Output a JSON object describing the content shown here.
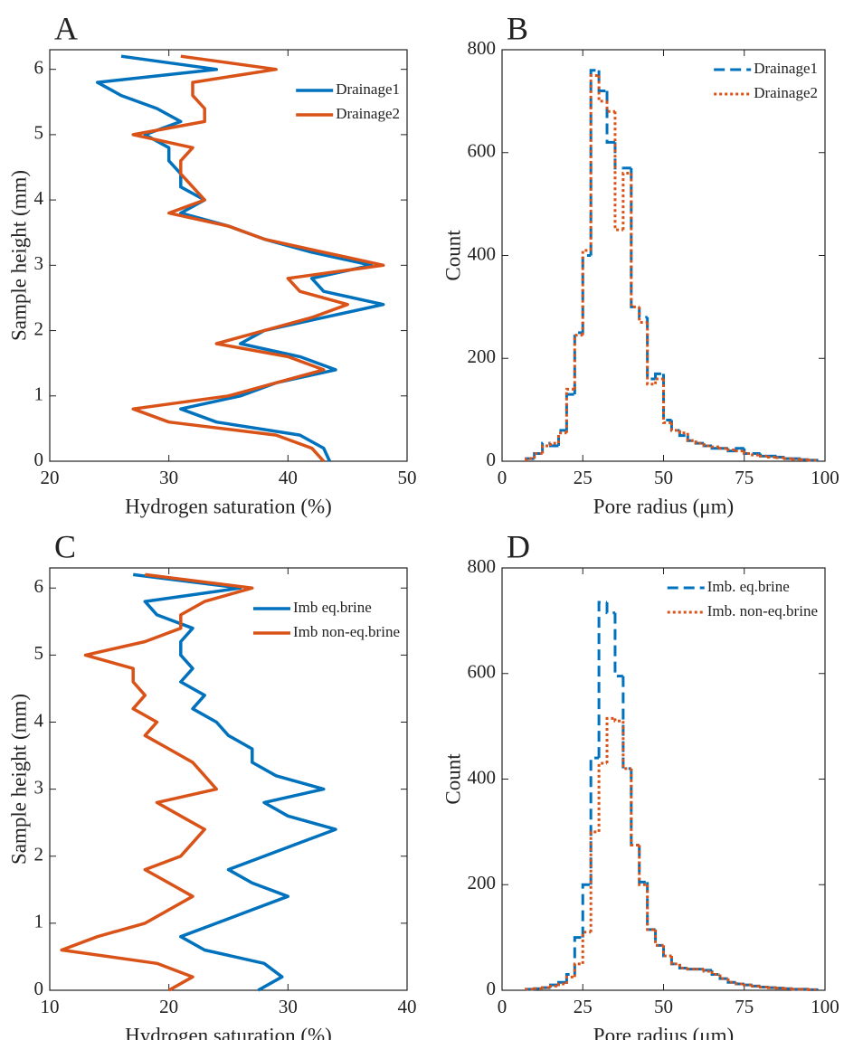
{
  "chart_data": [
    {
      "type": "line",
      "label": "A",
      "xlabel": "Hydrogen saturation (%)",
      "ylabel": "Sample height (mm)",
      "xlim": [
        20,
        50
      ],
      "xticks": [
        20,
        30,
        40,
        50
      ],
      "ylim": [
        0,
        6.3
      ],
      "yticks": [
        0,
        1,
        2,
        3,
        4,
        5,
        6
      ],
      "legend": "upper right",
      "y": [
        0,
        0.2,
        0.4,
        0.6,
        0.8,
        1.0,
        1.2,
        1.4,
        1.6,
        1.8,
        2.0,
        2.2,
        2.4,
        2.6,
        2.8,
        3.0,
        3.2,
        3.4,
        3.6,
        3.8,
        4.0,
        4.2,
        4.4,
        4.6,
        4.8,
        5.0,
        5.2,
        5.4,
        5.6,
        5.8,
        6.0,
        6.2
      ],
      "series": [
        {
          "name": "Drainage1",
          "color": "#0072bd",
          "values": [
            43.5,
            43,
            41,
            34,
            31,
            36,
            39,
            44,
            41,
            36,
            38,
            43,
            48,
            43,
            42,
            47,
            42,
            38,
            35,
            31,
            33,
            31,
            31,
            30,
            30,
            28,
            31,
            29,
            26,
            24,
            34,
            26
          ]
        },
        {
          "name": "Drainage2",
          "color": "#d95319",
          "values": [
            43,
            42,
            39,
            30,
            27,
            35,
            39,
            43,
            40,
            34,
            38,
            42,
            45,
            41,
            40,
            48,
            43,
            38,
            35,
            30,
            33,
            32,
            31,
            31,
            32,
            27,
            33,
            33,
            32,
            32,
            39,
            31
          ]
        }
      ]
    },
    {
      "type": "histogram",
      "label": "B",
      "xlabel": "Pore radius (μm)",
      "ylabel": "Count",
      "xlim": [
        0,
        100
      ],
      "xticks": [
        0,
        25,
        50,
        75,
        100
      ],
      "ylim": [
        0,
        800
      ],
      "yticks": [
        0,
        200,
        400,
        600,
        800
      ],
      "legend": "upper right",
      "bins": [
        7.5,
        10,
        12.5,
        15,
        17.5,
        20,
        22.5,
        25,
        27.5,
        30,
        32.5,
        35,
        37.5,
        40,
        42.5,
        45,
        47.5,
        50,
        52.5,
        55,
        57.5,
        60,
        62.5,
        65,
        67.5,
        70,
        72.5,
        75,
        77.5,
        80,
        82.5,
        85,
        87.5,
        90,
        92.5,
        95,
        97.5
      ],
      "series": [
        {
          "name": "Drainage1",
          "color": "#0072bd",
          "linestyle": "dashed",
          "values": [
            5,
            15,
            35,
            30,
            60,
            130,
            250,
            400,
            760,
            720,
            620,
            570,
            570,
            300,
            280,
            160,
            170,
            80,
            60,
            50,
            40,
            35,
            30,
            25,
            25,
            20,
            25,
            15,
            15,
            10,
            10,
            8,
            5,
            5,
            3,
            2
          ]
        },
        {
          "name": "Drainage2",
          "color": "#d95319",
          "linestyle": "dotted",
          "values": [
            5,
            15,
            30,
            35,
            55,
            140,
            245,
            410,
            750,
            700,
            680,
            450,
            560,
            300,
            270,
            150,
            160,
            75,
            60,
            55,
            40,
            35,
            30,
            28,
            25,
            22,
            20,
            15,
            12,
            10,
            8,
            7,
            5,
            4,
            3,
            2
          ]
        }
      ]
    },
    {
      "type": "line",
      "label": "C",
      "xlabel": "Hydrogen saturation (%)",
      "ylabel": "Sample height (mm)",
      "xlim": [
        10,
        40
      ],
      "xticks": [
        10,
        20,
        30,
        40
      ],
      "ylim": [
        0,
        6.3
      ],
      "yticks": [
        0,
        1,
        2,
        3,
        4,
        5,
        6
      ],
      "legend": "upper right",
      "y": [
        0,
        0.2,
        0.4,
        0.6,
        0.8,
        1.0,
        1.2,
        1.4,
        1.6,
        1.8,
        2.0,
        2.2,
        2.4,
        2.6,
        2.8,
        3.0,
        3.2,
        3.4,
        3.6,
        3.8,
        4.0,
        4.2,
        4.4,
        4.6,
        4.8,
        5.0,
        5.2,
        5.4,
        5.6,
        5.8,
        6.0,
        6.2
      ],
      "series": [
        {
          "name": "Imb eq.brine",
          "color": "#0072bd",
          "values": [
            27.5,
            29.5,
            28,
            23,
            21,
            24,
            27,
            30,
            27,
            25,
            28,
            31,
            34,
            30,
            28,
            33,
            29,
            27,
            27,
            25,
            24,
            22,
            23,
            21,
            22,
            21,
            21,
            22,
            19,
            18,
            26,
            17
          ]
        },
        {
          "name": "Imb non-eq.brine",
          "color": "#d95319",
          "values": [
            20,
            22,
            19,
            11,
            14,
            18,
            20,
            22,
            20,
            18,
            21,
            22,
            23,
            21,
            19,
            24,
            23,
            22,
            20,
            18,
            19,
            17,
            18,
            17,
            17,
            13,
            18,
            21,
            21,
            23,
            27,
            18
          ]
        }
      ]
    },
    {
      "type": "histogram",
      "label": "D",
      "xlabel": "Pore radius (μm)",
      "ylabel": "Count",
      "xlim": [
        0,
        100
      ],
      "xticks": [
        0,
        25,
        50,
        75,
        100
      ],
      "ylim": [
        0,
        800
      ],
      "yticks": [
        0,
        200,
        400,
        600,
        800
      ],
      "legend": "upper right",
      "bins": [
        7.5,
        10,
        12.5,
        15,
        17.5,
        20,
        22.5,
        25,
        27.5,
        30,
        32.5,
        35,
        37.5,
        40,
        42.5,
        45,
        47.5,
        50,
        52.5,
        55,
        57.5,
        60,
        62.5,
        65,
        67.5,
        70,
        72.5,
        75,
        77.5,
        80,
        82.5,
        85,
        87.5,
        90,
        92.5,
        95,
        97.5
      ],
      "series": [
        {
          "name": "Imb. eq.brine",
          "color": "#0072bd",
          "linestyle": "dashed",
          "values": [
            2,
            3,
            5,
            10,
            15,
            30,
            100,
            200,
            440,
            735,
            715,
            595,
            420,
            275,
            205,
            115,
            85,
            65,
            50,
            42,
            40,
            40,
            38,
            30,
            22,
            15,
            12,
            10,
            8,
            6,
            5,
            4,
            3,
            2,
            2,
            1
          ]
        },
        {
          "name": "Imb. non-eq.brine",
          "color": "#d95319",
          "linestyle": "dotted",
          "values": [
            2,
            3,
            5,
            8,
            12,
            25,
            50,
            110,
            300,
            430,
            515,
            510,
            420,
            275,
            200,
            115,
            85,
            65,
            50,
            42,
            40,
            40,
            36,
            30,
            22,
            15,
            12,
            10,
            8,
            6,
            5,
            4,
            3,
            2,
            2,
            1
          ]
        }
      ]
    }
  ]
}
